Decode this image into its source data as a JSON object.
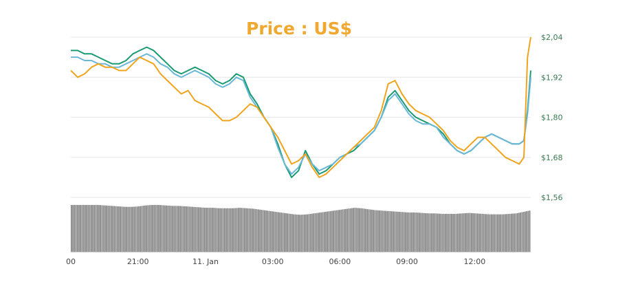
{
  "chart_data": {
    "type": "line",
    "title": "Price : US$",
    "ylim": [
      1.56,
      2.04
    ],
    "yticks": [
      "$2,04",
      "$1,92",
      "$1,80",
      "$1,68",
      "$1,56"
    ],
    "ytick_values": [
      2.04,
      1.92,
      1.8,
      1.68,
      1.56
    ],
    "xlim": [
      0,
      100
    ],
    "xticks": [
      {
        "x": 0,
        "label": "00"
      },
      {
        "x": 14.6,
        "label": "21:00"
      },
      {
        "x": 29.3,
        "label": "11. Jan"
      },
      {
        "x": 43.9,
        "label": "03:00"
      },
      {
        "x": 58.5,
        "label": "06:00"
      },
      {
        "x": 73.1,
        "label": "09:00"
      },
      {
        "x": 87.8,
        "label": "12:00"
      }
    ],
    "grid": true,
    "legend": "none",
    "series": [
      {
        "color": "#1a9a72",
        "x": [
          0,
          1.5,
          3,
          4.5,
          6,
          7.5,
          9,
          10.5,
          12,
          13.5,
          15,
          16.5,
          18,
          19.5,
          21,
          22.5,
          24,
          25.5,
          27,
          28.5,
          30,
          31.5,
          33,
          34.5,
          36,
          37.5,
          39,
          40.5,
          42,
          43.5,
          45,
          46.5,
          48,
          49.5,
          51,
          52.5,
          54,
          55.5,
          57,
          58.5,
          60,
          61.5,
          63,
          64.5,
          66,
          67.5,
          69,
          70.5,
          72,
          73.5,
          75,
          76.5,
          78,
          79.5,
          81,
          82.5,
          84,
          85.5,
          87,
          88.5,
          90,
          91.5,
          93,
          94.5,
          96,
          97.5,
          98.5,
          99.3,
          100
        ],
        "y": [
          2.0,
          2.0,
          1.99,
          1.99,
          1.98,
          1.97,
          1.96,
          1.96,
          1.97,
          1.99,
          2.0,
          2.01,
          2.0,
          1.98,
          1.96,
          1.94,
          1.93,
          1.94,
          1.95,
          1.94,
          1.93,
          1.91,
          1.9,
          1.91,
          1.93,
          1.92,
          1.87,
          1.84,
          1.8,
          1.77,
          1.72,
          1.66,
          1.62,
          1.64,
          1.7,
          1.66,
          1.63,
          1.64,
          1.66,
          1.68,
          1.69,
          1.7,
          1.72,
          1.74,
          1.76,
          1.8,
          1.86,
          1.88,
          1.85,
          1.82,
          1.8,
          1.79,
          1.78,
          1.77,
          1.75,
          1.72,
          1.7,
          1.69,
          1.7,
          1.72,
          1.74,
          1.75,
          1.74,
          1.73,
          1.72,
          1.72,
          1.73,
          1.82,
          1.94
        ]
      },
      {
        "color": "#6bb7d8",
        "x": [
          0,
          1.5,
          3,
          4.5,
          6,
          7.5,
          9,
          10.5,
          12,
          13.5,
          15,
          16.5,
          18,
          19.5,
          21,
          22.5,
          24,
          25.5,
          27,
          28.5,
          30,
          31.5,
          33,
          34.5,
          36,
          37.5,
          39,
          40.5,
          42,
          43.5,
          45,
          46.5,
          48,
          49.5,
          51,
          52.5,
          54,
          55.5,
          57,
          58.5,
          60,
          61.5,
          63,
          64.5,
          66,
          67.5,
          69,
          70.5,
          72,
          73.5,
          75,
          76.5,
          78,
          79.5,
          81,
          82.5,
          84,
          85.5,
          87,
          88.5,
          90,
          91.5,
          93,
          94.5,
          96,
          97.5,
          98.5,
          99.3,
          100
        ],
        "y": [
          1.98,
          1.98,
          1.97,
          1.97,
          1.96,
          1.96,
          1.95,
          1.95,
          1.96,
          1.97,
          1.98,
          1.99,
          1.98,
          1.96,
          1.95,
          1.93,
          1.92,
          1.93,
          1.94,
          1.93,
          1.92,
          1.9,
          1.89,
          1.9,
          1.92,
          1.91,
          1.86,
          1.83,
          1.8,
          1.77,
          1.71,
          1.66,
          1.63,
          1.65,
          1.69,
          1.66,
          1.64,
          1.65,
          1.66,
          1.68,
          1.69,
          1.71,
          1.72,
          1.74,
          1.76,
          1.8,
          1.85,
          1.87,
          1.84,
          1.81,
          1.79,
          1.78,
          1.78,
          1.77,
          1.74,
          1.72,
          1.7,
          1.69,
          1.7,
          1.72,
          1.74,
          1.75,
          1.74,
          1.73,
          1.72,
          1.72,
          1.73,
          1.81,
          1.92
        ]
      },
      {
        "color": "#f0a41c",
        "x": [
          0,
          1.5,
          3,
          4.5,
          6,
          7.5,
          9,
          10.5,
          12,
          13.5,
          15,
          16.5,
          18,
          19.5,
          21,
          22.5,
          24,
          25.5,
          27,
          28.5,
          30,
          31.5,
          33,
          34.5,
          36,
          37.5,
          39,
          40.5,
          42,
          43.5,
          45,
          46.5,
          48,
          49.5,
          51,
          52.5,
          54,
          55.5,
          57,
          58.5,
          60,
          61.5,
          63,
          64.5,
          66,
          67.5,
          69,
          70.5,
          72,
          73.5,
          75,
          76.5,
          78,
          79.5,
          81,
          82.5,
          84,
          85.5,
          87,
          88.5,
          90,
          91.5,
          93,
          94.5,
          96,
          97.5,
          98.5,
          99.3,
          100
        ],
        "y": [
          1.94,
          1.92,
          1.93,
          1.95,
          1.96,
          1.95,
          1.95,
          1.94,
          1.94,
          1.96,
          1.98,
          1.97,
          1.96,
          1.93,
          1.91,
          1.89,
          1.87,
          1.88,
          1.85,
          1.84,
          1.83,
          1.81,
          1.79,
          1.79,
          1.8,
          1.82,
          1.84,
          1.83,
          1.8,
          1.77,
          1.74,
          1.7,
          1.66,
          1.67,
          1.69,
          1.65,
          1.62,
          1.63,
          1.65,
          1.67,
          1.69,
          1.71,
          1.73,
          1.75,
          1.77,
          1.82,
          1.9,
          1.91,
          1.87,
          1.84,
          1.82,
          1.81,
          1.8,
          1.78,
          1.76,
          1.73,
          1.71,
          1.7,
          1.72,
          1.74,
          1.74,
          1.72,
          1.7,
          1.68,
          1.67,
          1.66,
          1.68,
          1.98,
          2.04
        ]
      }
    ],
    "volume": {
      "color": "#7a7a7a",
      "values": [
        1.0,
        1.0,
        1.0,
        1.0,
        1.0,
        0.99,
        0.98,
        0.97,
        0.96,
        0.96,
        0.97,
        0.99,
        1.0,
        1.0,
        0.99,
        0.98,
        0.98,
        0.97,
        0.96,
        0.95,
        0.94,
        0.94,
        0.93,
        0.93,
        0.93,
        0.94,
        0.93,
        0.92,
        0.9,
        0.88,
        0.86,
        0.84,
        0.82,
        0.8,
        0.79,
        0.8,
        0.82,
        0.84,
        0.86,
        0.88,
        0.9,
        0.92,
        0.94,
        0.93,
        0.91,
        0.89,
        0.88,
        0.87,
        0.86,
        0.85,
        0.84,
        0.84,
        0.83,
        0.82,
        0.82,
        0.81,
        0.81,
        0.81,
        0.82,
        0.83,
        0.82,
        0.81,
        0.8,
        0.8,
        0.8,
        0.81,
        0.82,
        0.85,
        0.88
      ]
    }
  }
}
